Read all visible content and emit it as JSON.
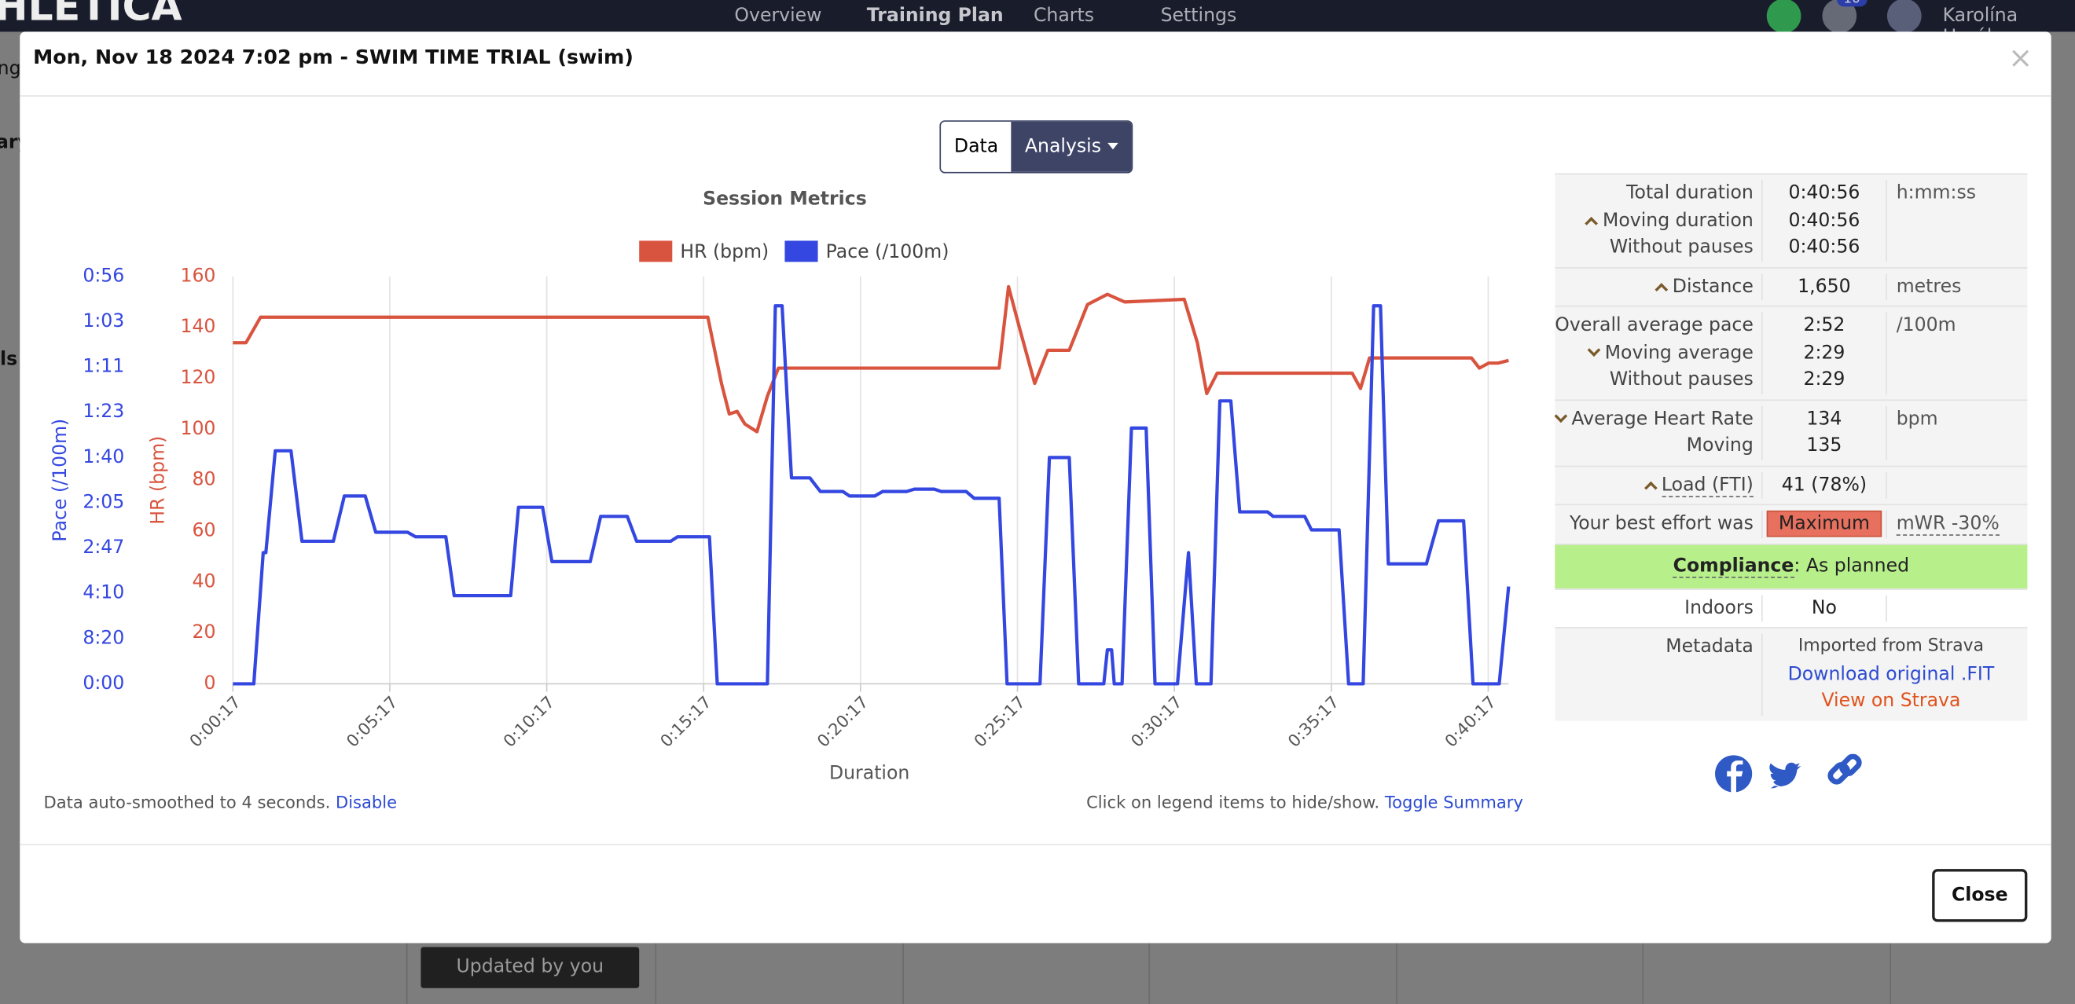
{
  "navbar": {
    "logo": "HLETICA",
    "items": [
      "Overview",
      "Training Plan",
      "Charts",
      "Settings"
    ],
    "notification_count": 10,
    "user": "Karolína Horák"
  },
  "background": {
    "fragments": [
      "ng",
      "ary",
      "ls"
    ],
    "status": "Updated by you"
  },
  "modal": {
    "title": "Mon, Nov 18 2024 7:02 pm - SWIM TIME TRIAL (swim)",
    "close_icon": "×",
    "tabs": [
      "Data",
      "Analysis"
    ],
    "smoothing_note": "Data auto-smoothed to 4 seconds.",
    "smoothing_link": "Disable",
    "legend_note": "Click on legend items to hide/show.",
    "legend_link": "Toggle Summary",
    "close_button": "Close"
  },
  "summary": {
    "groups": [
      {
        "lines": [
          {
            "label": "Total duration",
            "value": "0:40:56"
          },
          {
            "label": "Moving duration",
            "value": "0:40:56",
            "caret": "up"
          },
          {
            "label": "Without pauses",
            "value": "0:40:56"
          }
        ],
        "unit": "h:mm:ss"
      },
      {
        "lines": [
          {
            "label": "Distance",
            "value": "1,650",
            "caret": "up"
          }
        ],
        "unit": "metres"
      },
      {
        "lines": [
          {
            "label": "Overall average pace",
            "value": "2:52"
          },
          {
            "label": "Moving average",
            "value": "2:29",
            "caret": "down"
          },
          {
            "label": "Without pauses",
            "value": "2:29"
          }
        ],
        "unit": "/100m"
      },
      {
        "lines": [
          {
            "label": "Average Heart Rate",
            "value": "134",
            "caret": "down"
          },
          {
            "label": "Moving",
            "value": "135"
          }
        ],
        "unit": "bpm"
      },
      {
        "lines": [
          {
            "label": "Load (FTI)",
            "value": "41 (78%)",
            "caret": "up"
          }
        ],
        "unit": ""
      },
      {
        "lines": [
          {
            "label": "Your best effort was",
            "value": "Maximum"
          }
        ],
        "unit": "mWR -30%"
      }
    ],
    "compliance": {
      "label": "Compliance",
      "value": ": As planned"
    },
    "indoors": {
      "label": "Indoors",
      "value": "No"
    },
    "metadata": {
      "label": "Metadata",
      "lines": [
        "Imported from Strava",
        "Download original .FIT",
        "View on Strava"
      ]
    }
  },
  "chart_data": {
    "type": "line",
    "title": "Session Metrics",
    "xlabel": "Duration",
    "ylabel": "HR (bpm)",
    "y2label": "Pace (/100m)",
    "xlim": [
      17,
      2456
    ],
    "xticks": [
      {
        "value": 17,
        "label": "0:00:17"
      },
      {
        "value": 317,
        "label": "0:05:17"
      },
      {
        "value": 617,
        "label": "0:10:17"
      },
      {
        "value": 917,
        "label": "0:15:17"
      },
      {
        "value": 1217,
        "label": "0:20:17"
      },
      {
        "value": 1517,
        "label": "0:25:17"
      },
      {
        "value": 1817,
        "label": "0:30:17"
      },
      {
        "value": 2117,
        "label": "0:35:17"
      },
      {
        "value": 2417,
        "label": "0:40:17"
      }
    ],
    "ylim": [
      0,
      160
    ],
    "yticks": [
      0,
      20,
      40,
      60,
      80,
      100,
      120,
      140,
      160
    ],
    "y2lim": [
      0,
      1.8
    ],
    "y2ticks": [
      {
        "value": 0,
        "label": "0:00"
      },
      {
        "value": 0.2,
        "label": "8:20"
      },
      {
        "value": 0.4,
        "label": "4:10"
      },
      {
        "value": 0.6,
        "label": "2:47"
      },
      {
        "value": 0.8,
        "label": "2:05"
      },
      {
        "value": 1.0,
        "label": "1:40"
      },
      {
        "value": 1.2,
        "label": "1:23"
      },
      {
        "value": 1.4,
        "label": "1:11"
      },
      {
        "value": 1.6,
        "label": "1:03"
      },
      {
        "value": 1.8,
        "label": "0:56"
      }
    ],
    "grid": "x",
    "legend": "top",
    "series": [
      {
        "name": "HR (bpm)",
        "color": "#d9543f",
        "axis": "y",
        "x": [
          17,
          42,
          70,
          925,
          951,
          966,
          981,
          996,
          1019,
          1039,
          1060,
          1482,
          1500,
          1522,
          1550,
          1575,
          1616,
          1651,
          1689,
          1722,
          1836,
          1861,
          1879,
          1899,
          2157,
          2173,
          2190,
          2385,
          2400,
          2418,
          2436,
          2456
        ],
        "values": [
          134,
          134,
          144,
          144,
          118,
          106,
          107,
          102,
          99,
          113,
          124,
          124,
          156,
          139,
          118,
          131,
          131,
          149,
          153,
          150,
          151,
          134,
          114,
          122,
          122,
          116,
          128,
          128,
          124,
          126,
          126,
          127
        ]
      },
      {
        "name": "Pace (/100m)",
        "color": "#3447e0",
        "axis": "y2",
        "x": [
          17,
          57,
          75,
          80,
          98,
          128,
          149,
          209,
          230,
          270,
          290,
          351,
          366,
          424,
          440,
          548,
          563,
          609,
          627,
          700,
          720,
          771,
          789,
          854,
          867,
          928,
          943,
          1039,
          1054,
          1067,
          1085,
          1120,
          1140,
          1183,
          1196,
          1244,
          1259,
          1305,
          1320,
          1358,
          1371,
          1419,
          1434,
          1482,
          1497,
          1560,
          1578,
          1616,
          1634,
          1682,
          1689,
          1697,
          1702,
          1717,
          1735,
          1763,
          1780,
          1823,
          1844,
          1859,
          1887,
          1904,
          1925,
          1942,
          1995,
          2006,
          2066,
          2079,
          2132,
          2150,
          2178,
          2198,
          2211,
          2226,
          2299,
          2322,
          2370,
          2388,
          2438,
          2456
        ],
        "values": [
          0,
          0,
          0.58,
          0.58,
          1.03,
          1.03,
          0.63,
          0.63,
          0.83,
          0.83,
          0.67,
          0.67,
          0.65,
          0.65,
          0.39,
          0.39,
          0.78,
          0.78,
          0.54,
          0.54,
          0.74,
          0.74,
          0.63,
          0.63,
          0.65,
          0.65,
          0,
          0,
          1.67,
          1.67,
          0.91,
          0.91,
          0.85,
          0.85,
          0.83,
          0.83,
          0.85,
          0.85,
          0.86,
          0.86,
          0.85,
          0.85,
          0.82,
          0.82,
          0,
          0,
          1.0,
          1.0,
          0,
          0,
          0.15,
          0.15,
          0,
          0,
          1.13,
          1.13,
          0,
          0,
          0.58,
          0,
          0,
          1.25,
          1.25,
          0.76,
          0.76,
          0.74,
          0.74,
          0.68,
          0.68,
          0,
          0,
          1.67,
          1.67,
          0.53,
          0.53,
          0.72,
          0.72,
          0,
          0,
          0.43
        ]
      }
    ]
  }
}
